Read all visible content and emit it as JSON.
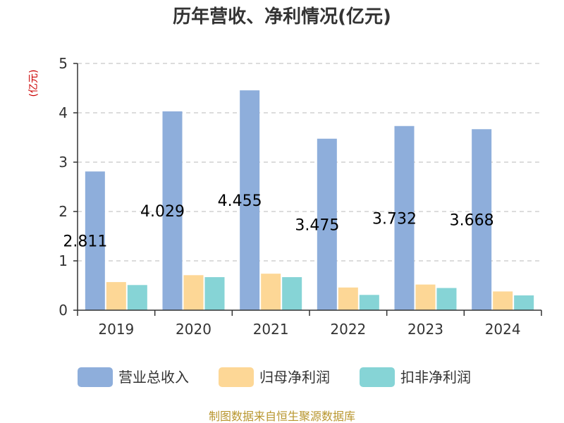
{
  "colors": {
    "revenue": "#8eaedb",
    "net_profit": "#fdd796",
    "deducted_profit": "#86d4d6",
    "unit": "#cc0000",
    "source": "#b8962e",
    "grid": "#c8c8c8",
    "axis": "#333333"
  },
  "chart_data": {
    "type": "bar",
    "title": "历年营收、净利情况(亿元)",
    "unit_label": "(亿元)",
    "categories": [
      "2019",
      "2020",
      "2021",
      "2022",
      "2023",
      "2024"
    ],
    "series": [
      {
        "name": "营业总收入",
        "values": [
          2.811,
          4.029,
          4.455,
          3.475,
          3.732,
          3.668
        ],
        "labels": [
          "2.811",
          "4.029",
          "4.455",
          "3.475",
          "3.732",
          "3.668"
        ],
        "color_key": "revenue"
      },
      {
        "name": "归母净利润",
        "values": [
          0.57,
          0.71,
          0.74,
          0.46,
          0.52,
          0.38
        ],
        "color_key": "net_profit"
      },
      {
        "name": "扣非净利润",
        "values": [
          0.51,
          0.67,
          0.67,
          0.31,
          0.45,
          0.3
        ],
        "color_key": "deducted_profit"
      }
    ],
    "y_ticks": [
      "0",
      "1",
      "2",
      "3",
      "4",
      "5"
    ],
    "ylim": [
      0,
      5
    ],
    "grid": true,
    "legend_position": "bottom"
  },
  "source": "制图数据来自恒生聚源数据库"
}
